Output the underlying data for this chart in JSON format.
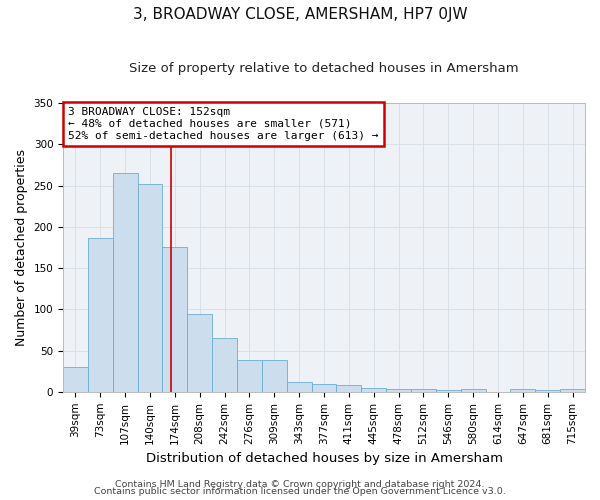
{
  "title": "3, BROADWAY CLOSE, AMERSHAM, HP7 0JW",
  "subtitle": "Size of property relative to detached houses in Amersham",
  "xlabel": "Distribution of detached houses by size in Amersham",
  "ylabel": "Number of detached properties",
  "bar_labels": [
    "39sqm",
    "73sqm",
    "107sqm",
    "140sqm",
    "174sqm",
    "208sqm",
    "242sqm",
    "276sqm",
    "309sqm",
    "343sqm",
    "377sqm",
    "411sqm",
    "445sqm",
    "478sqm",
    "512sqm",
    "546sqm",
    "580sqm",
    "614sqm",
    "647sqm",
    "681sqm",
    "715sqm"
  ],
  "bar_heights": [
    30,
    187,
    265,
    252,
    176,
    94,
    65,
    38,
    38,
    12,
    9,
    8,
    5,
    4,
    3,
    2,
    3,
    0,
    3,
    2,
    3
  ],
  "bar_color": "#ccdeed",
  "bar_edge_color": "#6aaed6",
  "grid_color": "#d5dde5",
  "plot_bg_color": "#eef2f7",
  "annotation_text": "3 BROADWAY CLOSE: 152sqm\n← 48% of detached houses are smaller (571)\n52% of semi-detached houses are larger (613) →",
  "annotation_box_color": "#ffffff",
  "annotation_box_edge_color": "#cc0000",
  "footer_line1": "Contains HM Land Registry data © Crown copyright and database right 2024.",
  "footer_line2": "Contains public sector information licensed under the Open Government Licence v3.0.",
  "ylim": [
    0,
    350
  ],
  "title_fontsize": 11,
  "subtitle_fontsize": 9.5,
  "xlabel_fontsize": 9.5,
  "ylabel_fontsize": 9,
  "tick_fontsize": 7.5,
  "annotation_fontsize": 8,
  "footer_fontsize": 6.8
}
